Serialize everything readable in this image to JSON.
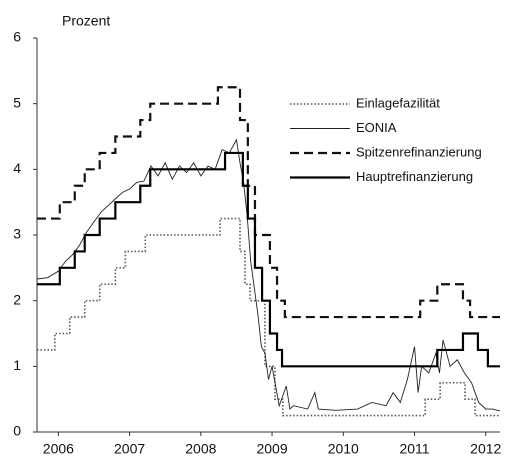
{
  "chart_data": {
    "type": "line",
    "ylabel": "Prozent",
    "xlim": [
      2005.7,
      2012.2
    ],
    "xticks": [
      2006,
      2007,
      2008,
      2009,
      2010,
      2011,
      2012
    ],
    "ylim": [
      0,
      6
    ],
    "yticks": [
      0,
      1,
      2,
      3,
      4,
      5,
      6
    ],
    "legend": "upper right",
    "series": [
      {
        "name": "Einlagefazilität",
        "color": "#555555",
        "linestyle": "dotted",
        "linewidth": 1.6,
        "drawstyle": "steps-post",
        "x": [
          2005.7,
          2005.95,
          2006.16,
          2006.37,
          2006.58,
          2006.8,
          2006.94,
          2007.22,
          2008.27,
          2008.55,
          2008.62,
          2008.69,
          2008.9,
          2009.04,
          2009.15,
          2011.15,
          2011.36,
          2011.71,
          2011.85,
          2012.2
        ],
        "values": [
          1.25,
          1.5,
          1.75,
          2.0,
          2.25,
          2.5,
          2.75,
          3.0,
          3.25,
          2.75,
          2.25,
          2.0,
          1.0,
          0.5,
          0.25,
          0.5,
          0.75,
          0.5,
          0.25,
          0.25
        ]
      },
      {
        "name": "EONIA",
        "color": "#222222",
        "linestyle": "solid",
        "linewidth": 0.9,
        "drawstyle": "default",
        "x": [
          2005.7,
          2005.85,
          2006.0,
          2006.1,
          2006.2,
          2006.3,
          2006.4,
          2006.5,
          2006.6,
          2006.7,
          2006.8,
          2006.9,
          2007.0,
          2007.1,
          2007.2,
          2007.3,
          2007.4,
          2007.5,
          2007.6,
          2007.7,
          2007.8,
          2007.9,
          2008.0,
          2008.1,
          2008.2,
          2008.3,
          2008.4,
          2008.5,
          2008.55,
          2008.6,
          2008.65,
          2008.7,
          2008.75,
          2008.8,
          2008.85,
          2008.9,
          2008.95,
          2009.0,
          2009.05,
          2009.1,
          2009.2,
          2009.25,
          2009.3,
          2009.5,
          2009.6,
          2009.65,
          2009.9,
          2010.2,
          2010.4,
          2010.6,
          2010.7,
          2010.8,
          2010.9,
          2011.0,
          2011.05,
          2011.1,
          2011.2,
          2011.3,
          2011.35,
          2011.4,
          2011.5,
          2011.6,
          2011.7,
          2011.8,
          2011.9,
          2012.0,
          2012.1,
          2012.2
        ],
        "values": [
          2.33,
          2.35,
          2.45,
          2.6,
          2.7,
          2.85,
          3.05,
          3.2,
          3.35,
          3.45,
          3.55,
          3.65,
          3.7,
          3.8,
          3.82,
          4.05,
          3.9,
          4.1,
          3.85,
          4.05,
          3.95,
          4.1,
          3.9,
          4.05,
          4.0,
          4.3,
          4.25,
          4.45,
          4.1,
          3.8,
          3.3,
          2.6,
          2.2,
          1.8,
          1.3,
          1.2,
          0.8,
          1.0,
          0.7,
          0.4,
          0.7,
          0.35,
          0.4,
          0.35,
          0.6,
          0.35,
          0.33,
          0.35,
          0.45,
          0.4,
          0.6,
          0.45,
          0.8,
          1.3,
          0.6,
          1.0,
          0.9,
          1.2,
          0.9,
          1.4,
          1.0,
          1.1,
          0.9,
          0.75,
          0.45,
          0.35,
          0.35,
          0.32
        ]
      },
      {
        "name": "Spitzenrefinanzierung",
        "color": "#111111",
        "linestyle": "dashed",
        "linewidth": 2.2,
        "drawstyle": "steps-post",
        "x": [
          2005.7,
          2006.02,
          2006.23,
          2006.37,
          2006.58,
          2006.8,
          2007.15,
          2007.29,
          2008.24,
          2008.55,
          2008.66,
          2008.76,
          2008.97,
          2009.07,
          2009.18,
          2011.08,
          2011.32,
          2011.68,
          2011.78,
          2012.2
        ],
        "values": [
          3.25,
          3.5,
          3.75,
          4.0,
          4.25,
          4.5,
          4.75,
          5.0,
          5.25,
          4.75,
          3.75,
          3.0,
          2.5,
          2.0,
          1.75,
          2.0,
          2.25,
          2.0,
          1.75,
          1.75
        ]
      },
      {
        "name": "Hauptrefinanzierung",
        "color": "#000000",
        "linestyle": "solid",
        "linewidth": 2.2,
        "drawstyle": "steps-post",
        "x": [
          2005.7,
          2006.02,
          2006.23,
          2006.37,
          2006.58,
          2006.8,
          2007.15,
          2007.29,
          2008.34,
          2008.59,
          2008.66,
          2008.76,
          2008.86,
          2008.97,
          2009.07,
          2009.14,
          2011.32,
          2011.68,
          2011.89,
          2012.03,
          2012.2
        ],
        "values": [
          2.25,
          2.5,
          2.75,
          3.0,
          3.25,
          3.5,
          3.75,
          4.0,
          4.25,
          3.75,
          3.25,
          2.5,
          2.0,
          1.5,
          1.25,
          1.0,
          1.25,
          1.5,
          1.25,
          1.0,
          1.0
        ]
      }
    ]
  }
}
